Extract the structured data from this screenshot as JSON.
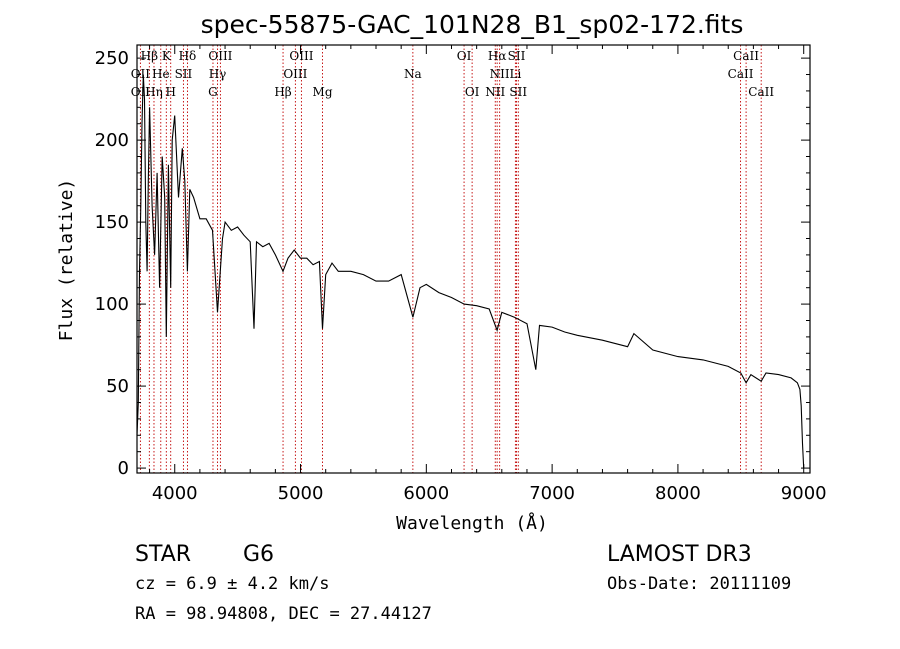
{
  "chart_data": {
    "type": "line",
    "title": "spec-55875-GAC_101N28_B1_sp02-172.fits",
    "xlabel": "Wavelength (Å)",
    "ylabel": "Flux (relative)",
    "xlim": [
      3700,
      9050
    ],
    "ylim": [
      -3,
      258
    ],
    "xticks": [
      4000,
      5000,
      6000,
      7000,
      8000,
      9000
    ],
    "yticks": [
      0,
      50,
      100,
      150,
      200,
      250
    ],
    "series": [
      {
        "name": "spectrum",
        "x": [
          3700,
          3710,
          3720,
          3730,
          3740,
          3750,
          3760,
          3770,
          3780,
          3790,
          3800,
          3820,
          3840,
          3860,
          3880,
          3900,
          3920,
          3933,
          3950,
          3968,
          3980,
          4000,
          4030,
          4060,
          4080,
          4101,
          4120,
          4150,
          4200,
          4250,
          4300,
          4320,
          4340,
          4380,
          4400,
          4450,
          4500,
          4550,
          4600,
          4630,
          4650,
          4700,
          4750,
          4800,
          4861,
          4900,
          4950,
          5000,
          5050,
          5100,
          5150,
          5175,
          5200,
          5250,
          5300,
          5400,
          5500,
          5600,
          5700,
          5800,
          5893,
          5950,
          6000,
          6100,
          6200,
          6300,
          6400,
          6500,
          6563,
          6600,
          6700,
          6800,
          6870,
          6900,
          7000,
          7100,
          7200,
          7400,
          7600,
          7650,
          7800,
          8000,
          8200,
          8400,
          8500,
          8542,
          8580,
          8662,
          8700,
          8800,
          8900,
          8950,
          8970,
          8980,
          8990,
          9000
        ],
        "y": [
          20,
          40,
          120,
          160,
          210,
          240,
          225,
          150,
          120,
          175,
          220,
          160,
          130,
          180,
          110,
          190,
          165,
          80,
          185,
          110,
          200,
          215,
          165,
          195,
          175,
          120,
          170,
          165,
          152,
          152,
          145,
          120,
          95,
          140,
          150,
          145,
          147,
          142,
          138,
          85,
          138,
          135,
          137,
          130,
          120,
          128,
          133,
          128,
          128,
          124,
          126,
          85,
          118,
          125,
          120,
          120,
          118,
          114,
          114,
          118,
          92,
          110,
          112,
          107,
          104,
          100,
          99,
          97,
          84,
          95,
          92,
          88,
          60,
          87,
          86,
          83,
          81,
          78,
          74,
          82,
          72,
          68,
          66,
          62,
          58,
          52,
          57,
          53,
          58,
          57,
          55,
          52,
          48,
          38,
          15,
          0
        ]
      }
    ],
    "spectral_lines": [
      {
        "label": "Hβ",
        "wavelength": 3798,
        "row": 0
      },
      {
        "label": "K",
        "wavelength": 3933,
        "row": 0
      },
      {
        "label": "Hδ",
        "wavelength": 4101,
        "row": 0
      },
      {
        "label": "OIII",
        "wavelength": 4363,
        "row": 0
      },
      {
        "label": "OIII",
        "wavelength": 5007,
        "row": 0
      },
      {
        "label": "OI",
        "wavelength": 6300,
        "row": 0
      },
      {
        "label": "Hα",
        "wavelength": 6563,
        "row": 0
      },
      {
        "label": "SII",
        "wavelength": 6717,
        "row": 0
      },
      {
        "label": "CaII",
        "wavelength": 8542,
        "row": 0
      },
      {
        "label": "OII",
        "wavelength": 3727,
        "row": 1
      },
      {
        "label": "He",
        "wavelength": 3889,
        "row": 1
      },
      {
        "label": "SII",
        "wavelength": 4069,
        "row": 1
      },
      {
        "label": "Hγ",
        "wavelength": 4340,
        "row": 1
      },
      {
        "label": "OIII",
        "wavelength": 4959,
        "row": 1
      },
      {
        "label": "Na",
        "wavelength": 5893,
        "row": 1
      },
      {
        "label": "NII",
        "wavelength": 6583,
        "row": 1
      },
      {
        "label": "Li",
        "wavelength": 6708,
        "row": 1
      },
      {
        "label": "CaII",
        "wavelength": 8498,
        "row": 1
      },
      {
        "label": "OII",
        "wavelength": 3727,
        "row": 2
      },
      {
        "label": "Hη",
        "wavelength": 3835,
        "row": 2
      },
      {
        "label": "H",
        "wavelength": 3968,
        "row": 2
      },
      {
        "label": "G",
        "wavelength": 4304,
        "row": 2
      },
      {
        "label": "Hβ",
        "wavelength": 4861,
        "row": 2
      },
      {
        "label": "Mg",
        "wavelength": 5175,
        "row": 2
      },
      {
        "label": "OI",
        "wavelength": 6364,
        "row": 2
      },
      {
        "label": "NII",
        "wavelength": 6548,
        "row": 2
      },
      {
        "label": "SII",
        "wavelength": 6731,
        "row": 2
      },
      {
        "label": "CaII",
        "wavelength": 8662,
        "row": 2
      }
    ]
  },
  "info": {
    "object_class": "STAR",
    "subclass": "G6",
    "survey": "LAMOST DR3",
    "cz": "cz = 6.9 ± 4.2 km/s",
    "obs_date": "Obs-Date: 20111109",
    "coords": "RA =  98.94808, DEC =  27.44127"
  },
  "colors": {
    "spectrum": "#000000",
    "line_marker": "#c00000",
    "axis": "#000000"
  }
}
